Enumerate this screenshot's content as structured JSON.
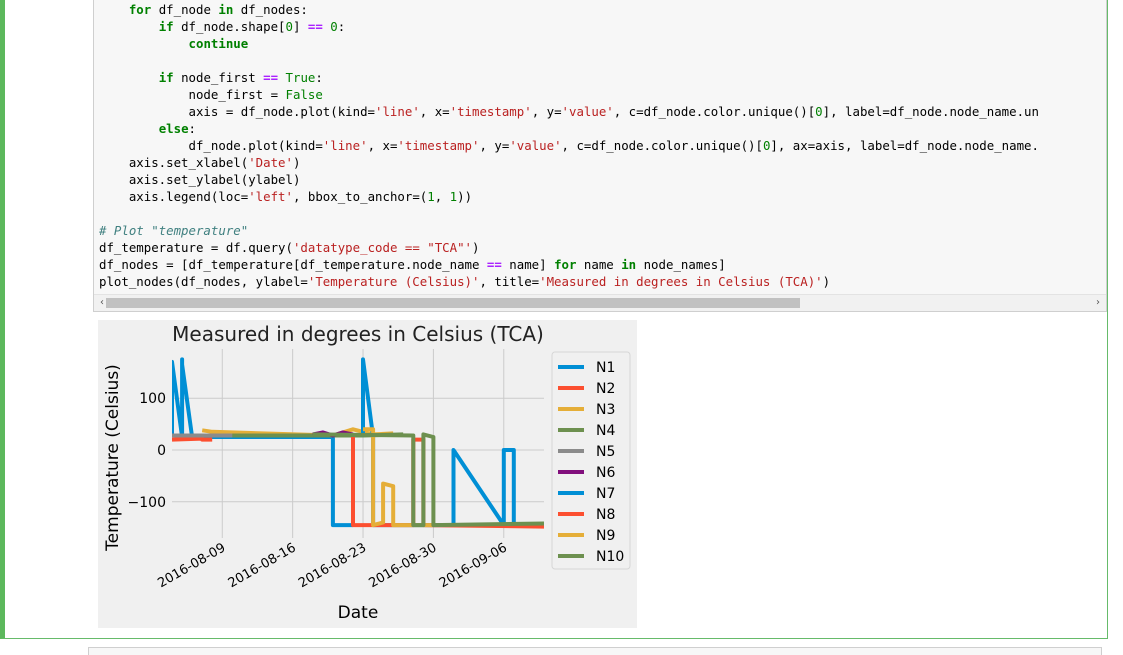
{
  "code_lines": [
    "    for df_node in df_nodes:",
    "        if df_node.shape[0] == 0:",
    "            continue",
    "",
    "        if node_first == True:",
    "            node_first = False",
    "            axis = df_node.plot(kind='line', x='timestamp', y='value', c=df_node.color.unique()[0], label=df_node.node_name.un",
    "        else:",
    "            df_node.plot(kind='line', x='timestamp', y='value', c=df_node.color.unique()[0], ax=axis, label=df_node.node_name.",
    "    axis.set_xlabel('Date')",
    "    axis.set_ylabel(ylabel)",
    "    axis.legend(loc='left', bbox_to_anchor=(1, 1))",
    "",
    "# Plot \"temperature\"",
    "df_temperature = df.query('datatype_code == \"TCA\"')",
    "df_nodes = [df_temperature[df_temperature.node_name == name] for name in node_names]",
    "plot_nodes(df_nodes, ylabel='Temperature (Celsius)', title='Measured in degrees in Celsius (TCA)')"
  ],
  "scroll": {
    "left_arrow": "‹",
    "right_arrow": "›"
  },
  "chart_data": {
    "type": "line",
    "title": "Measured in degrees in Celsius (TCA)",
    "xlabel": "Date",
    "ylabel": "Temperature (Celsius)",
    "x_ticks": [
      "2016-08-09",
      "2016-08-16",
      "2016-08-23",
      "2016-08-30",
      "2016-09-06"
    ],
    "y_ticks": [
      100,
      0,
      -100
    ],
    "ylim": [
      -170,
      195
    ],
    "xlim": [
      "2016-08-04",
      "2016-09-10"
    ],
    "grid": true,
    "legend_position": "outside-right",
    "series": [
      {
        "name": "N1",
        "color": "#008fd5",
        "points": [
          [
            "2016-08-04",
            25
          ],
          [
            "2016-08-04",
            165
          ],
          [
            "2016-08-04",
            170
          ],
          [
            "2016-08-05",
            25
          ],
          [
            "2016-08-05",
            175
          ],
          [
            "2016-08-05",
            165
          ],
          [
            "2016-08-06",
            25
          ],
          [
            "2016-08-20",
            25
          ],
          [
            "2016-08-20",
            -145
          ],
          [
            "2016-08-22",
            -145
          ]
        ]
      },
      {
        "name": "N2",
        "color": "#fc4f30",
        "points": [
          [
            "2016-08-04",
            20
          ],
          [
            "2016-08-07",
            22
          ],
          [
            "2016-08-07",
            20
          ],
          [
            "2016-08-07",
            20
          ],
          [
            "2016-08-08",
            20
          ]
        ]
      },
      {
        "name": "N3",
        "color": "#e5ae38",
        "points": [
          [
            "2016-08-07",
            38
          ],
          [
            "2016-08-08",
            35
          ],
          [
            "2016-08-20",
            28
          ],
          [
            "2016-08-22",
            40
          ],
          [
            "2016-08-24",
            30
          ],
          [
            "2016-08-26",
            32
          ]
        ]
      },
      {
        "name": "N4",
        "color": "#6d904f",
        "points": [
          [
            "2016-08-04",
            28
          ],
          [
            "2016-08-20",
            28
          ],
          [
            "2016-08-23",
            28
          ],
          [
            "2016-08-27",
            30
          ]
        ]
      },
      {
        "name": "N5",
        "color": "#8b8b8b",
        "points": [
          [
            "2016-08-04",
            28
          ],
          [
            "2016-08-10",
            28
          ]
        ]
      },
      {
        "name": "N6",
        "color": "#810f7c",
        "points": [
          [
            "2016-08-18",
            30
          ],
          [
            "2016-08-19",
            34
          ],
          [
            "2016-08-20",
            28
          ],
          [
            "2016-08-21",
            34
          ],
          [
            "2016-08-22",
            30
          ]
        ]
      },
      {
        "name": "N7",
        "color": "#008fd5",
        "points": [
          [
            "2016-08-23",
            25
          ],
          [
            "2016-08-23",
            175
          ],
          [
            "2016-08-24",
            25
          ],
          [
            "2016-08-24",
            -145
          ],
          [
            "2016-08-29",
            -145
          ],
          [
            "2016-09-01",
            -145
          ],
          [
            "2016-09-01",
            0
          ],
          [
            "2016-09-06",
            -145
          ],
          [
            "2016-09-06",
            0
          ],
          [
            "2016-09-07",
            0
          ],
          [
            "2016-09-07",
            -145
          ],
          [
            "2016-09-10",
            -145
          ]
        ]
      },
      {
        "name": "N8",
        "color": "#fc4f30",
        "points": [
          [
            "2016-08-22",
            25
          ],
          [
            "2016-08-22",
            -145
          ],
          [
            "2016-08-28",
            -145
          ],
          [
            "2016-08-28",
            20
          ],
          [
            "2016-08-29",
            20
          ],
          [
            "2016-08-29",
            -145
          ],
          [
            "2016-09-10",
            -148
          ]
        ]
      },
      {
        "name": "N9",
        "color": "#e5ae38",
        "points": [
          [
            "2016-08-23",
            40
          ],
          [
            "2016-08-24",
            40
          ],
          [
            "2016-08-24",
            -145
          ],
          [
            "2016-08-25",
            -140
          ],
          [
            "2016-08-25",
            -65
          ],
          [
            "2016-08-26",
            -70
          ],
          [
            "2016-08-26",
            -145
          ],
          [
            "2016-08-30",
            -145
          ]
        ]
      },
      {
        "name": "N10",
        "color": "#6d904f",
        "points": [
          [
            "2016-08-18",
            30
          ],
          [
            "2016-08-28",
            28
          ],
          [
            "2016-08-28",
            -145
          ],
          [
            "2016-08-29",
            -145
          ],
          [
            "2016-08-29",
            30
          ],
          [
            "2016-08-30",
            25
          ],
          [
            "2016-08-30",
            -145
          ],
          [
            "2016-09-10",
            -142
          ]
        ]
      }
    ]
  }
}
